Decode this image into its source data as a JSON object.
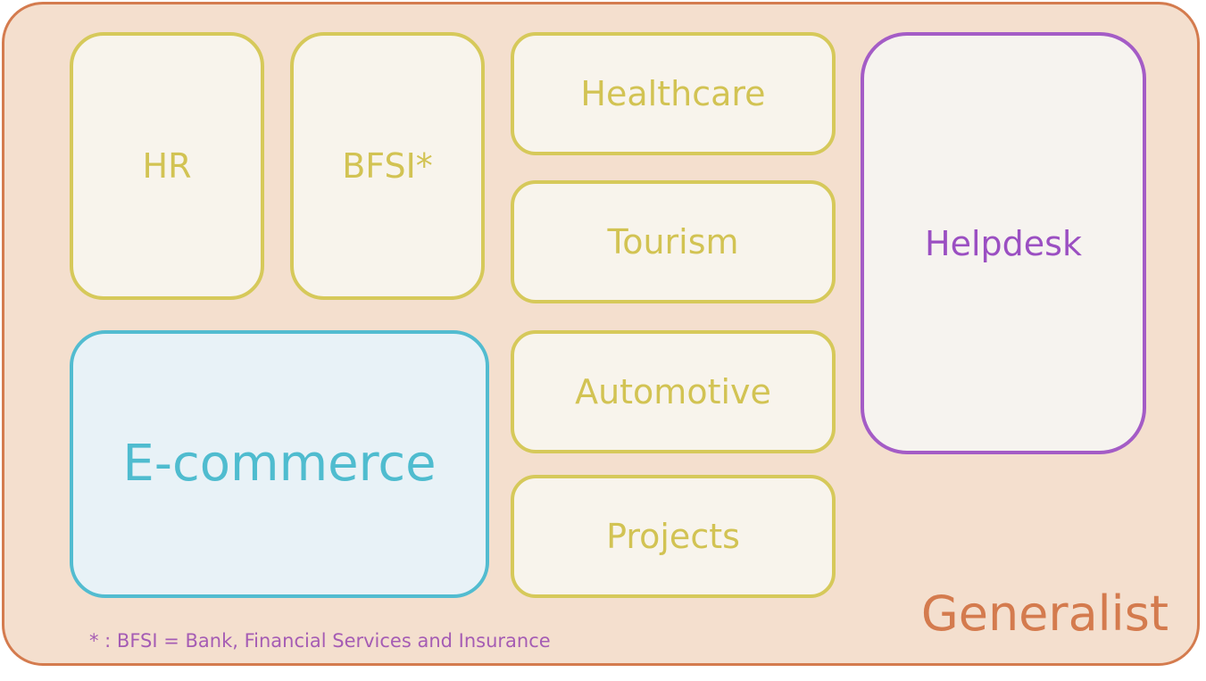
{
  "boxes": {
    "hr": "HR",
    "bfsi": "BFSI*",
    "healthcare": "Healthcare",
    "tourism": "Tourism",
    "automotive": "Automotive",
    "projects": "Projects",
    "ecommerce": "E-commerce",
    "helpdesk": "Helpdesk"
  },
  "container_label": "Generalist",
  "footnote": "* : BFSI = Bank, Financial Services and Insurance",
  "colors": {
    "outer_border": "#d47b4e",
    "outer_fill": "#f4dfce",
    "domain_border": "#d6c95a",
    "ecommerce_border": "#52bcd0",
    "helpdesk_border": "#a45cc6"
  }
}
